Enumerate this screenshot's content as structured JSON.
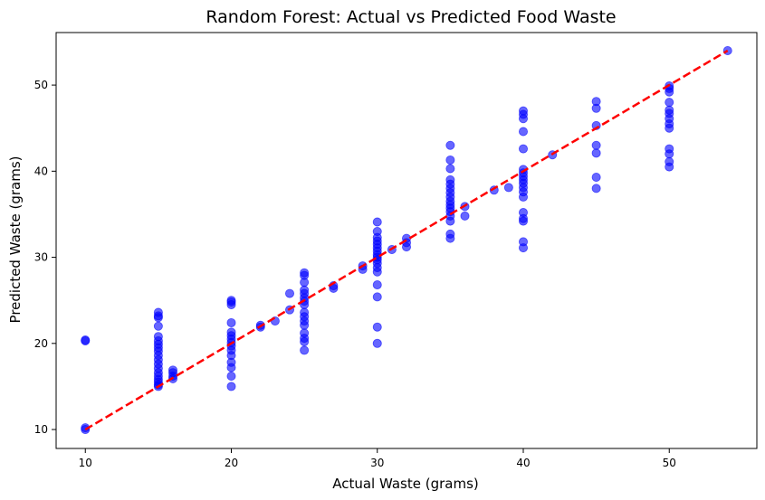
{
  "chart_data": {
    "type": "scatter",
    "title": "Random Forest: Actual vs Predicted Food Waste",
    "xlabel": "Actual Waste (grams)",
    "ylabel": "Predicted Waste (grams)",
    "xlim": [
      8.0,
      56.0
    ],
    "ylim": [
      7.8,
      56.1
    ],
    "xticks": [
      10,
      20,
      30,
      40,
      50
    ],
    "yticks": [
      10,
      20,
      30,
      40,
      50
    ],
    "grid": false,
    "point_color": "#0000ff",
    "line_color": "#ff0000",
    "reference_line": {
      "x": [
        10,
        54
      ],
      "y": [
        10,
        54
      ],
      "style": "dashed"
    },
    "points": [
      [
        10,
        10.0
      ],
      [
        10,
        10.2
      ],
      [
        10,
        20.3
      ],
      [
        10,
        20.4
      ],
      [
        15,
        15.0
      ],
      [
        15,
        15.2
      ],
      [
        15,
        15.5
      ],
      [
        15,
        15.8
      ],
      [
        15,
        16.2
      ],
      [
        15,
        16.6
      ],
      [
        15,
        17.1
      ],
      [
        15,
        17.6
      ],
      [
        15,
        18.1
      ],
      [
        15,
        18.6
      ],
      [
        15,
        19.1
      ],
      [
        15,
        19.5
      ],
      [
        15,
        19.9
      ],
      [
        15,
        20.3
      ],
      [
        15,
        20.8
      ],
      [
        15,
        22.0
      ],
      [
        15,
        23.0
      ],
      [
        15,
        23.2
      ],
      [
        15,
        23.6
      ],
      [
        16,
        15.9
      ],
      [
        16,
        16.2
      ],
      [
        16,
        16.6
      ],
      [
        16,
        16.9
      ],
      [
        20,
        15.0
      ],
      [
        20,
        16.2
      ],
      [
        20,
        17.2
      ],
      [
        20,
        17.8
      ],
      [
        20,
        18.6
      ],
      [
        20,
        19.2
      ],
      [
        20,
        19.7
      ],
      [
        20,
        20.1
      ],
      [
        20,
        20.5
      ],
      [
        20,
        20.9
      ],
      [
        20,
        21.3
      ],
      [
        20,
        22.4
      ],
      [
        20,
        24.5
      ],
      [
        20,
        24.8
      ],
      [
        20,
        25.0
      ],
      [
        22,
        21.9
      ],
      [
        22,
        22.1
      ],
      [
        23,
        22.6
      ],
      [
        24,
        23.9
      ],
      [
        24,
        25.8
      ],
      [
        25,
        19.2
      ],
      [
        25,
        20.2
      ],
      [
        25,
        20.6
      ],
      [
        25,
        21.2
      ],
      [
        25,
        22.1
      ],
      [
        25,
        22.6
      ],
      [
        25,
        23.1
      ],
      [
        25,
        23.6
      ],
      [
        25,
        24.5
      ],
      [
        25,
        24.9
      ],
      [
        25,
        25.3
      ],
      [
        25,
        25.8
      ],
      [
        25,
        26.2
      ],
      [
        25,
        27.1
      ],
      [
        25,
        27.9
      ],
      [
        25,
        28.2
      ],
      [
        27,
        26.4
      ],
      [
        27,
        26.7
      ],
      [
        29,
        28.6
      ],
      [
        29,
        29.0
      ],
      [
        30,
        20.0
      ],
      [
        30,
        21.9
      ],
      [
        30,
        25.4
      ],
      [
        30,
        26.8
      ],
      [
        30,
        28.3
      ],
      [
        30,
        28.8
      ],
      [
        30,
        29.3
      ],
      [
        30,
        29.7
      ],
      [
        30,
        30.0
      ],
      [
        30,
        30.3
      ],
      [
        30,
        30.7
      ],
      [
        30,
        31.1
      ],
      [
        30,
        31.5
      ],
      [
        30,
        31.9
      ],
      [
        30,
        32.3
      ],
      [
        30,
        33.0
      ],
      [
        30,
        34.1
      ],
      [
        31,
        30.9
      ],
      [
        32,
        31.2
      ],
      [
        32,
        31.7
      ],
      [
        32,
        32.2
      ],
      [
        35,
        32.2
      ],
      [
        35,
        32.7
      ],
      [
        35,
        34.2
      ],
      [
        35,
        34.8
      ],
      [
        35,
        35.3
      ],
      [
        35,
        35.7
      ],
      [
        35,
        36.1
      ],
      [
        35,
        36.5
      ],
      [
        35,
        37.0
      ],
      [
        35,
        37.5
      ],
      [
        35,
        38.0
      ],
      [
        35,
        38.5
      ],
      [
        35,
        39.0
      ],
      [
        35,
        40.3
      ],
      [
        35,
        41.3
      ],
      [
        35,
        43.0
      ],
      [
        36,
        34.8
      ],
      [
        36,
        35.9
      ],
      [
        38,
        37.8
      ],
      [
        39,
        38.1
      ],
      [
        40,
        31.1
      ],
      [
        40,
        31.8
      ],
      [
        40,
        34.2
      ],
      [
        40,
        34.5
      ],
      [
        40,
        35.2
      ],
      [
        40,
        37.0
      ],
      [
        40,
        37.6
      ],
      [
        40,
        38.1
      ],
      [
        40,
        38.6
      ],
      [
        40,
        39.0
      ],
      [
        40,
        39.4
      ],
      [
        40,
        39.8
      ],
      [
        40,
        40.2
      ],
      [
        40,
        42.6
      ],
      [
        40,
        44.6
      ],
      [
        40,
        46.1
      ],
      [
        40,
        46.6
      ],
      [
        40,
        47.0
      ],
      [
        42,
        41.9
      ],
      [
        45,
        38.0
      ],
      [
        45,
        39.3
      ],
      [
        45,
        42.1
      ],
      [
        45,
        43.0
      ],
      [
        45,
        45.3
      ],
      [
        45,
        47.3
      ],
      [
        45,
        48.1
      ],
      [
        50,
        40.5
      ],
      [
        50,
        41.1
      ],
      [
        50,
        42.0
      ],
      [
        50,
        42.6
      ],
      [
        50,
        45.0
      ],
      [
        50,
        45.5
      ],
      [
        50,
        46.1
      ],
      [
        50,
        46.7
      ],
      [
        50,
        47.1
      ],
      [
        50,
        48.0
      ],
      [
        50,
        49.2
      ],
      [
        50,
        49.6
      ],
      [
        50,
        49.9
      ],
      [
        54,
        54.0
      ]
    ]
  }
}
